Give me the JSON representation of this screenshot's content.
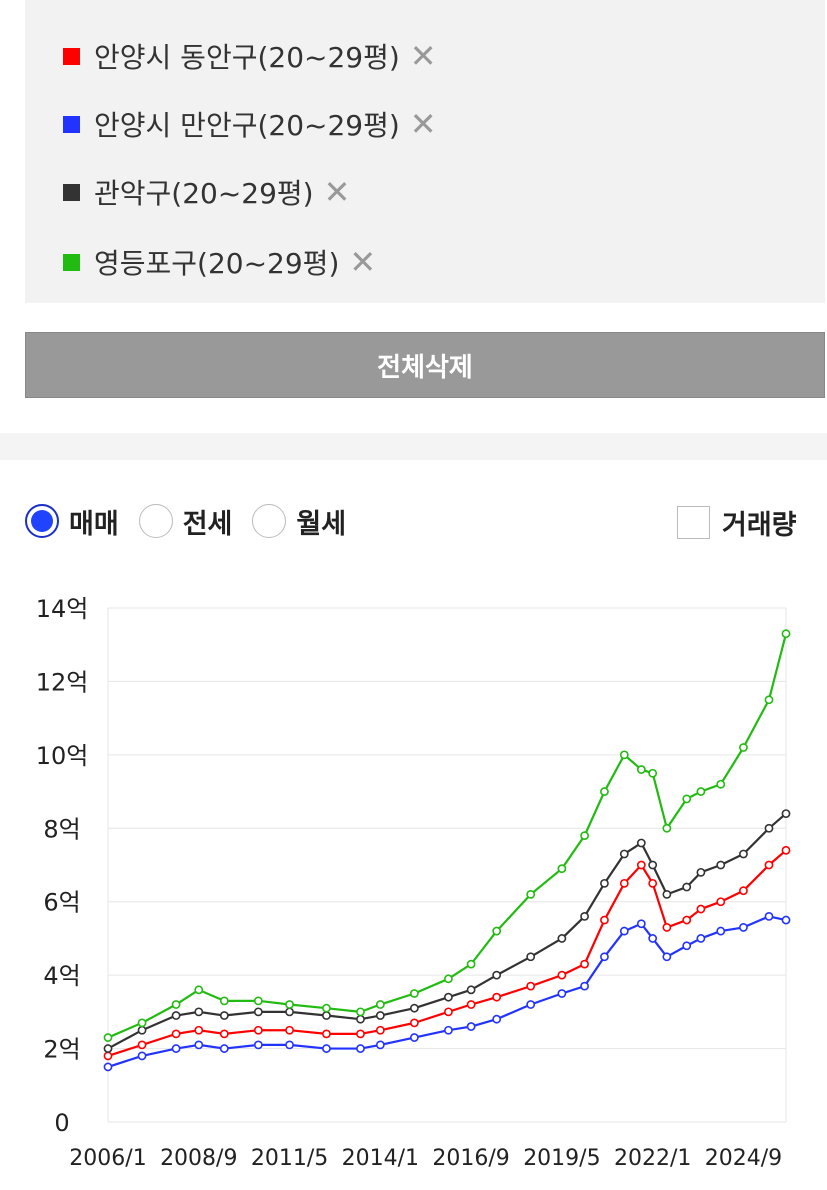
{
  "legend": {
    "items": [
      {
        "label": "안양시 동안구(20~29평)",
        "color": "#ff0000"
      },
      {
        "label": "안양시 만안구(20~29평)",
        "color": "#2233ff"
      },
      {
        "label": "관악구(20~29평)",
        "color": "#333333"
      },
      {
        "label": "영등포구(20~29평)",
        "color": "#22bb11"
      }
    ],
    "remove_symbol": "✕"
  },
  "delete_all_label": "전체삭제",
  "options": {
    "radios": [
      {
        "label": "매매",
        "checked": true
      },
      {
        "label": "전세",
        "checked": false
      },
      {
        "label": "월세",
        "checked": false
      }
    ],
    "volume_label": "거래량",
    "volume_checked": false
  },
  "chart_data": {
    "type": "line",
    "title": "",
    "xlabel": "",
    "ylabel": "",
    "ylim": [
      0,
      14
    ],
    "yticks": [
      "0",
      "2억",
      "4억",
      "6억",
      "8억",
      "10억",
      "12억",
      "14억"
    ],
    "xticks": [
      "2006/1",
      "2008/9",
      "2011/5",
      "2014/1",
      "2016/9",
      "2019/5",
      "2022/1",
      "2024/9"
    ],
    "x_range": [
      "2006/1",
      "2025/12"
    ],
    "grid": true,
    "markers": "hollow-circle",
    "series": [
      {
        "name": "안양시 동안구(20~29평)",
        "color": "#ff0000",
        "points": [
          [
            "2006/1",
            1.8
          ],
          [
            "2007/1",
            2.1
          ],
          [
            "2008/1",
            2.4
          ],
          [
            "2008/9",
            2.5
          ],
          [
            "2009/6",
            2.4
          ],
          [
            "2010/6",
            2.5
          ],
          [
            "2011/5",
            2.5
          ],
          [
            "2012/6",
            2.4
          ],
          [
            "2013/6",
            2.4
          ],
          [
            "2014/1",
            2.5
          ],
          [
            "2015/1",
            2.7
          ],
          [
            "2016/1",
            3.0
          ],
          [
            "2016/9",
            3.2
          ],
          [
            "2017/6",
            3.4
          ],
          [
            "2018/6",
            3.7
          ],
          [
            "2019/5",
            4.0
          ],
          [
            "2020/1",
            4.3
          ],
          [
            "2020/8",
            5.5
          ],
          [
            "2021/3",
            6.5
          ],
          [
            "2021/9",
            7.0
          ],
          [
            "2022/1",
            6.5
          ],
          [
            "2022/6",
            5.3
          ],
          [
            "2023/1",
            5.5
          ],
          [
            "2023/6",
            5.8
          ],
          [
            "2024/1",
            6.0
          ],
          [
            "2024/9",
            6.3
          ],
          [
            "2025/6",
            7.0
          ],
          [
            "2025/12",
            7.4
          ]
        ]
      },
      {
        "name": "안양시 만안구(20~29평)",
        "color": "#2233ff",
        "points": [
          [
            "2006/1",
            1.5
          ],
          [
            "2007/1",
            1.8
          ],
          [
            "2008/1",
            2.0
          ],
          [
            "2008/9",
            2.1
          ],
          [
            "2009/6",
            2.0
          ],
          [
            "2010/6",
            2.1
          ],
          [
            "2011/5",
            2.1
          ],
          [
            "2012/6",
            2.0
          ],
          [
            "2013/6",
            2.0
          ],
          [
            "2014/1",
            2.1
          ],
          [
            "2015/1",
            2.3
          ],
          [
            "2016/1",
            2.5
          ],
          [
            "2016/9",
            2.6
          ],
          [
            "2017/6",
            2.8
          ],
          [
            "2018/6",
            3.2
          ],
          [
            "2019/5",
            3.5
          ],
          [
            "2020/1",
            3.7
          ],
          [
            "2020/8",
            4.5
          ],
          [
            "2021/3",
            5.2
          ],
          [
            "2021/9",
            5.4
          ],
          [
            "2022/1",
            5.0
          ],
          [
            "2022/6",
            4.5
          ],
          [
            "2023/1",
            4.8
          ],
          [
            "2023/6",
            5.0
          ],
          [
            "2024/1",
            5.2
          ],
          [
            "2024/9",
            5.3
          ],
          [
            "2025/6",
            5.6
          ],
          [
            "2025/12",
            5.5
          ]
        ]
      },
      {
        "name": "관악구(20~29평)",
        "color": "#333333",
        "points": [
          [
            "2006/1",
            2.0
          ],
          [
            "2007/1",
            2.5
          ],
          [
            "2008/1",
            2.9
          ],
          [
            "2008/9",
            3.0
          ],
          [
            "2009/6",
            2.9
          ],
          [
            "2010/6",
            3.0
          ],
          [
            "2011/5",
            3.0
          ],
          [
            "2012/6",
            2.9
          ],
          [
            "2013/6",
            2.8
          ],
          [
            "2014/1",
            2.9
          ],
          [
            "2015/1",
            3.1
          ],
          [
            "2016/1",
            3.4
          ],
          [
            "2016/9",
            3.6
          ],
          [
            "2017/6",
            4.0
          ],
          [
            "2018/6",
            4.5
          ],
          [
            "2019/5",
            5.0
          ],
          [
            "2020/1",
            5.6
          ],
          [
            "2020/8",
            6.5
          ],
          [
            "2021/3",
            7.3
          ],
          [
            "2021/9",
            7.6
          ],
          [
            "2022/1",
            7.0
          ],
          [
            "2022/6",
            6.2
          ],
          [
            "2023/1",
            6.4
          ],
          [
            "2023/6",
            6.8
          ],
          [
            "2024/1",
            7.0
          ],
          [
            "2024/9",
            7.3
          ],
          [
            "2025/6",
            8.0
          ],
          [
            "2025/12",
            8.4
          ]
        ]
      },
      {
        "name": "영등포구(20~29평)",
        "color": "#22bb11",
        "points": [
          [
            "2006/1",
            2.3
          ],
          [
            "2007/1",
            2.7
          ],
          [
            "2008/1",
            3.2
          ],
          [
            "2008/9",
            3.6
          ],
          [
            "2009/6",
            3.3
          ],
          [
            "2010/6",
            3.3
          ],
          [
            "2011/5",
            3.2
          ],
          [
            "2012/6",
            3.1
          ],
          [
            "2013/6",
            3.0
          ],
          [
            "2014/1",
            3.2
          ],
          [
            "2015/1",
            3.5
          ],
          [
            "2016/1",
            3.9
          ],
          [
            "2016/9",
            4.3
          ],
          [
            "2017/6",
            5.2
          ],
          [
            "2018/6",
            6.2
          ],
          [
            "2019/5",
            6.9
          ],
          [
            "2020/1",
            7.8
          ],
          [
            "2020/8",
            9.0
          ],
          [
            "2021/3",
            10.0
          ],
          [
            "2021/9",
            9.6
          ],
          [
            "2022/1",
            9.5
          ],
          [
            "2022/6",
            8.0
          ],
          [
            "2023/1",
            8.8
          ],
          [
            "2023/6",
            9.0
          ],
          [
            "2024/1",
            9.2
          ],
          [
            "2024/9",
            10.2
          ],
          [
            "2025/6",
            11.5
          ],
          [
            "2025/12",
            13.3
          ]
        ]
      }
    ]
  }
}
